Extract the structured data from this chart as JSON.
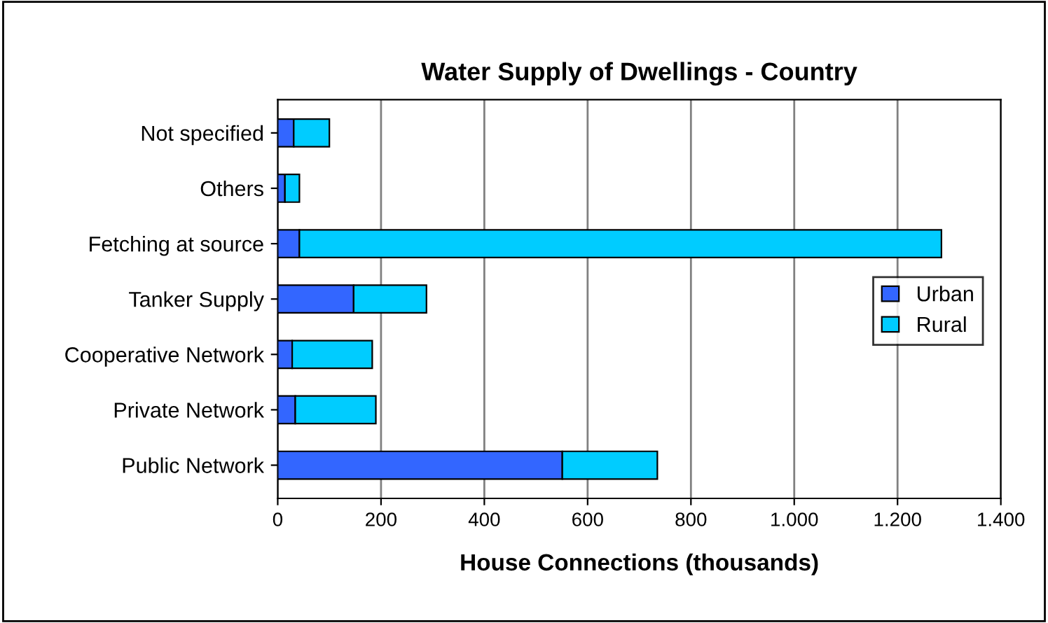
{
  "chart_data": {
    "type": "bar",
    "orientation": "horizontal",
    "stacked": true,
    "title": "Water Supply of Dwellings - Country",
    "xlabel": "House Connections (thousands)",
    "categories": [
      "Not specified",
      "Others",
      "Fetching at source",
      "Tanker Supply",
      "Cooperative Network",
      "Private Network",
      "Public Network"
    ],
    "series": [
      {
        "name": "Urban",
        "color": "#3366ff",
        "values": [
          31,
          14,
          42,
          147,
          28,
          34,
          551
        ]
      },
      {
        "name": "Rural",
        "color": "#00ccff",
        "values": [
          69,
          28,
          1243,
          141,
          155,
          156,
          184
        ]
      }
    ],
    "xlim": [
      0,
      1400
    ],
    "xticks": [
      0,
      200,
      400,
      600,
      800,
      {
        "value": 1000,
        "label": "1.000"
      },
      {
        "value": 1200,
        "label": "1.200"
      },
      {
        "value": 1400,
        "label": "1.400"
      }
    ],
    "grid": "x",
    "legend": "right"
  }
}
